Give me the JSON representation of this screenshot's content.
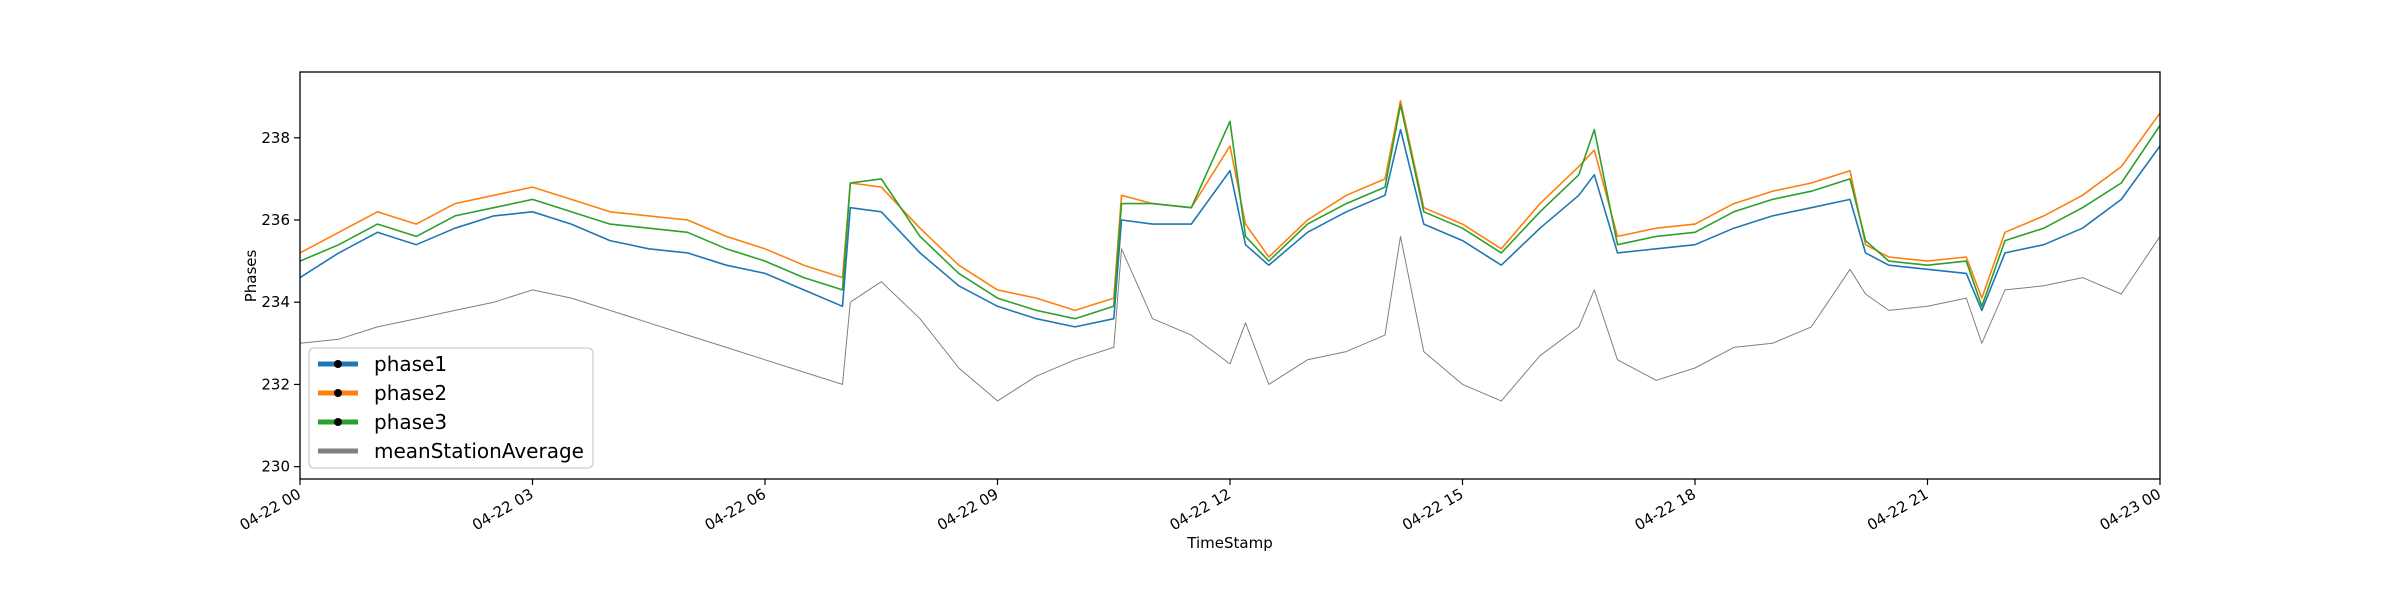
{
  "chart_data": {
    "type": "line",
    "title": "",
    "xlabel": "TimeStamp",
    "ylabel": "Phases",
    "xlim": [
      "04-22 00",
      "04-23 00"
    ],
    "ylim": [
      229.7,
      239.6
    ],
    "grid": false,
    "legend_position": "lower-left",
    "x_tick_labels": [
      "04-22 00",
      "04-22 03",
      "04-22 06",
      "04-22 09",
      "04-22 12",
      "04-22 15",
      "04-22 18",
      "04-22 21",
      "04-23 00"
    ],
    "y_ticks": [
      230,
      232,
      234,
      236,
      238
    ],
    "hours": [
      0,
      0.5,
      1,
      1.5,
      2,
      2.5,
      3,
      3.5,
      4,
      4.5,
      5,
      5.5,
      6,
      6.5,
      7,
      7.1,
      7.5,
      8,
      8.5,
      9,
      9.5,
      10,
      10.5,
      10.6,
      11,
      11.5,
      12,
      12.2,
      12.5,
      13,
      13.5,
      14,
      14.2,
      14.5,
      15,
      15.5,
      16,
      16.5,
      16.7,
      17,
      17.5,
      18,
      18.5,
      19,
      19.5,
      20,
      20.2,
      20.5,
      21,
      21.5,
      21.7,
      22,
      22.5,
      23,
      23.5,
      24
    ],
    "series": [
      {
        "name": "phase1",
        "color": "#1f77b4",
        "values": [
          234.6,
          235.2,
          235.7,
          235.4,
          235.8,
          236.1,
          236.2,
          235.9,
          235.5,
          235.3,
          235.2,
          234.9,
          234.7,
          234.3,
          233.9,
          236.3,
          236.2,
          235.2,
          234.4,
          233.9,
          233.6,
          233.4,
          233.6,
          236.0,
          235.9,
          235.9,
          237.2,
          235.4,
          234.9,
          235.7,
          236.2,
          236.6,
          238.2,
          235.9,
          235.5,
          234.9,
          235.8,
          236.6,
          237.1,
          235.2,
          235.3,
          235.4,
          235.8,
          236.1,
          236.3,
          236.5,
          235.2,
          234.9,
          234.8,
          234.7,
          233.8,
          235.2,
          235.4,
          235.8,
          236.5,
          237.8
        ]
      },
      {
        "name": "phase2",
        "color": "#ff7f0e",
        "values": [
          235.2,
          235.7,
          236.2,
          235.9,
          236.4,
          236.6,
          236.8,
          236.5,
          236.2,
          236.1,
          236.0,
          235.6,
          235.3,
          234.9,
          234.6,
          236.9,
          236.8,
          235.8,
          234.9,
          234.3,
          234.1,
          233.8,
          234.1,
          236.6,
          236.4,
          236.3,
          237.8,
          235.9,
          235.1,
          236.0,
          236.6,
          237.0,
          238.9,
          236.3,
          235.9,
          235.3,
          236.4,
          237.3,
          237.7,
          235.6,
          235.8,
          235.9,
          236.4,
          236.7,
          236.9,
          237.2,
          235.4,
          235.1,
          235.0,
          235.1,
          234.1,
          235.7,
          236.1,
          236.6,
          237.3,
          238.6
        ]
      },
      {
        "name": "phase3",
        "color": "#2ca02c",
        "values": [
          235.0,
          235.4,
          235.9,
          235.6,
          236.1,
          236.3,
          236.5,
          236.2,
          235.9,
          235.8,
          235.7,
          235.3,
          235.0,
          234.6,
          234.3,
          236.9,
          237.0,
          235.6,
          234.7,
          234.1,
          233.8,
          233.6,
          233.9,
          236.4,
          236.4,
          236.3,
          238.4,
          235.6,
          235.0,
          235.9,
          236.4,
          236.8,
          238.8,
          236.2,
          235.8,
          235.2,
          236.2,
          237.1,
          238.2,
          235.4,
          235.6,
          235.7,
          236.2,
          236.5,
          236.7,
          237.0,
          235.5,
          235.0,
          234.9,
          235.0,
          233.9,
          235.5,
          235.8,
          236.3,
          236.9,
          238.3
        ]
      },
      {
        "name": "meanStationAverage",
        "color": "#808080",
        "values": [
          233.0,
          233.1,
          233.4,
          233.6,
          233.8,
          234.0,
          234.3,
          234.1,
          233.8,
          233.5,
          233.2,
          232.9,
          232.6,
          232.3,
          232.0,
          234.0,
          234.5,
          233.6,
          232.4,
          231.6,
          232.2,
          232.6,
          232.9,
          235.3,
          233.6,
          233.2,
          232.5,
          233.5,
          232.0,
          232.6,
          232.8,
          233.2,
          235.6,
          232.8,
          232.0,
          231.6,
          232.7,
          233.4,
          234.3,
          232.6,
          232.1,
          232.4,
          232.9,
          233.0,
          233.4,
          234.8,
          234.2,
          233.8,
          233.9,
          234.1,
          233.0,
          234.3,
          234.4,
          234.6,
          234.2,
          235.6
        ]
      }
    ]
  }
}
